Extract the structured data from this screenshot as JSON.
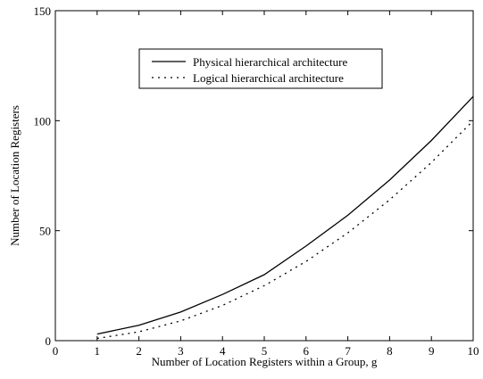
{
  "chart_data": {
    "type": "line",
    "title": "",
    "xlabel": "Number of Location Registers within a Group, g",
    "ylabel": "Number of Location Registers",
    "xlim": [
      0,
      10
    ],
    "ylim": [
      0,
      150
    ],
    "xticks": [
      0,
      1,
      2,
      3,
      4,
      5,
      6,
      7,
      8,
      9,
      10
    ],
    "yticks": [
      0,
      50,
      100,
      150
    ],
    "grid": false,
    "legend_position": "top-center",
    "series": [
      {
        "name": "Physical hierarchical architecture",
        "style": "solid",
        "x": [
          1,
          2,
          3,
          4,
          5,
          6,
          7,
          8,
          9,
          10
        ],
        "y": [
          3,
          7,
          13,
          21,
          30,
          43,
          57,
          73,
          91,
          111
        ]
      },
      {
        "name": "Logical hierarchical architecture",
        "style": "dotted",
        "x": [
          1,
          2,
          3,
          4,
          5,
          6,
          7,
          8,
          9,
          10
        ],
        "y": [
          1,
          4,
          9,
          16,
          25,
          36,
          49,
          64,
          81,
          100
        ]
      }
    ]
  }
}
